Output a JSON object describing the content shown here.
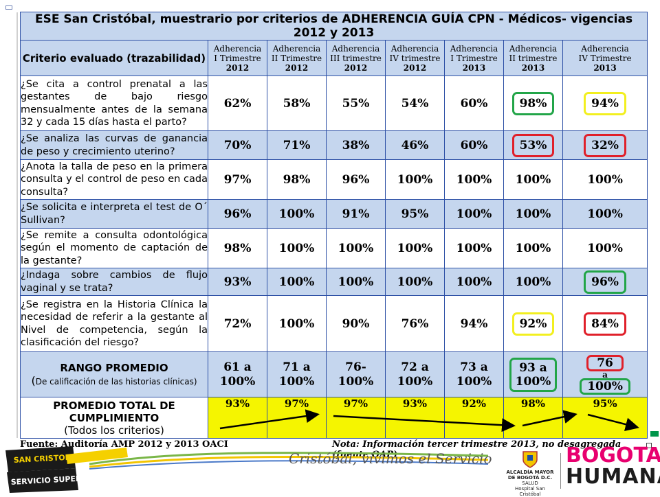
{
  "title": "ESE San Cristóbal, muestrario por criterios de ADHERENCIA GUÍA CPN - Médicos- vigencias 2012 y 2013",
  "criterion_header": "Criterio evaluado (trazabilidad)",
  "columns": [
    {
      "l1": "Adherencia",
      "l2": "I Trimestre",
      "year": "2012"
    },
    {
      "l1": "Adherencia",
      "l2": "II Trimestre",
      "year": "2012"
    },
    {
      "l1": "Adherencia",
      "l2": "III trimestre",
      "year": "2012"
    },
    {
      "l1": "Adherencia",
      "l2": "IV trimestre",
      "year": "2012"
    },
    {
      "l1": "Adherencia",
      "l2": "I Trimestre",
      "year": "2013"
    },
    {
      "l1": "Adherencia",
      "l2": "II trimestre",
      "year": "2013"
    },
    {
      "l1": "Adherencia",
      "l2": "IV Trimestre",
      "year": "2013"
    }
  ],
  "rows": [
    {
      "question": "¿Se cita a control prenatal a las gestantes de bajo riesgo mensualmente antes de la semana 32 y cada 15 días hasta el parto?",
      "values": [
        "62%",
        "58%",
        "55%",
        "54%",
        "60%",
        "98%",
        "94%"
      ],
      "marks": [
        "",
        "",
        "",
        "",
        "",
        "green",
        "yellow"
      ]
    },
    {
      "question": "¿Se analiza las curvas de ganancia de peso y crecimiento uterino?",
      "values": [
        "70%",
        "71%",
        "38%",
        "46%",
        "60%",
        "53%",
        "32%"
      ],
      "marks": [
        "",
        "",
        "",
        "",
        "",
        "red",
        "red"
      ]
    },
    {
      "question": "¿Anota la talla de peso en la primera consulta y el control de peso en cada consulta?",
      "values": [
        "97%",
        "98%",
        "96%",
        "100%",
        "100%",
        "100%",
        "100%"
      ],
      "marks": [
        "",
        "",
        "",
        "",
        "",
        "",
        ""
      ]
    },
    {
      "question": "¿Se solicita e interpreta el test de O´ Sullivan?",
      "values": [
        "96%",
        "100%",
        "91%",
        "95%",
        "100%",
        "100%",
        "100%"
      ],
      "marks": [
        "",
        "",
        "",
        "",
        "",
        "",
        ""
      ]
    },
    {
      "question": "¿Se remite a consulta odontológica según el momento de captación de la gestante?",
      "values": [
        "98%",
        "100%",
        "100%",
        "100%",
        "100%",
        "100%",
        "100%"
      ],
      "marks": [
        "",
        "",
        "",
        "",
        "",
        "",
        ""
      ]
    },
    {
      "question": "¿Indaga sobre cambios de flujo vaginal y se trata?",
      "values": [
        "93%",
        "100%",
        "100%",
        "100%",
        "100%",
        "100%",
        "96%"
      ],
      "marks": [
        "",
        "",
        "",
        "",
        "",
        "",
        "green"
      ]
    },
    {
      "question": "¿Se registra en la Historia Clínica la necesidad de referir a la gestante al Nivel de competencia, según la clasificación del riesgo?",
      "values": [
        "72%",
        "100%",
        "90%",
        "76%",
        "94%",
        "92%",
        "84%"
      ],
      "marks": [
        "",
        "",
        "",
        "",
        "",
        "yellow",
        "red"
      ]
    }
  ],
  "range": {
    "label": "RANGO PROMEDIO",
    "sub_paren": "(",
    "sub": "De calificación de las historias clínicas)",
    "values": [
      {
        "a": "61 a",
        "b": "100%"
      },
      {
        "a": "71 a",
        "b": "100%"
      },
      {
        "a": "76-",
        "b": "100%"
      },
      {
        "a": "72 a",
        "b": "100%"
      },
      {
        "a": "73 a",
        "b": "100%"
      },
      {
        "a": "93 a",
        "b": "100%"
      },
      {
        "a": "76",
        "mid": "a",
        "b": "100%"
      }
    ]
  },
  "total": {
    "label1": "PROMEDIO TOTAL DE",
    "label2": "CUMPLIMIENTO",
    "label3": "(Todos los criterios)",
    "values": [
      "93%",
      "97%",
      "97%",
      "93%",
      "92%",
      "98%",
      "95%"
    ]
  },
  "footer": {
    "source": "Fuente: Auditoría AMP 2012  y 2013 OACI",
    "note": "Nota: Información tercer trimestre 2013,  no desagregada (fuente OAP)"
  },
  "branding": {
    "slogan": "Cristóbal, vivimos el Servicio",
    "logo_line1": "SAN CRISTOBAL",
    "logo_line2": "SERVICIO SUPERIOR",
    "crest_line1": "ALCALDÍA MAYOR",
    "crest_line2": "DE BOGOTÁ D.C.",
    "crest_line3": "SALUD",
    "crest_line4": "Hospital San Cristóbal",
    "bogota": "BOGOTA",
    "humana": "HUMANA"
  },
  "colors": {
    "header_blue": "#c5d6ee",
    "border_blue": "#2c4fa5",
    "highlight_yellow": "#f5f500",
    "ring_green": "#22a548",
    "ring_red": "#e0202a",
    "ring_yellow": "#f2ef1f",
    "brand_pink": "#e8006f"
  }
}
